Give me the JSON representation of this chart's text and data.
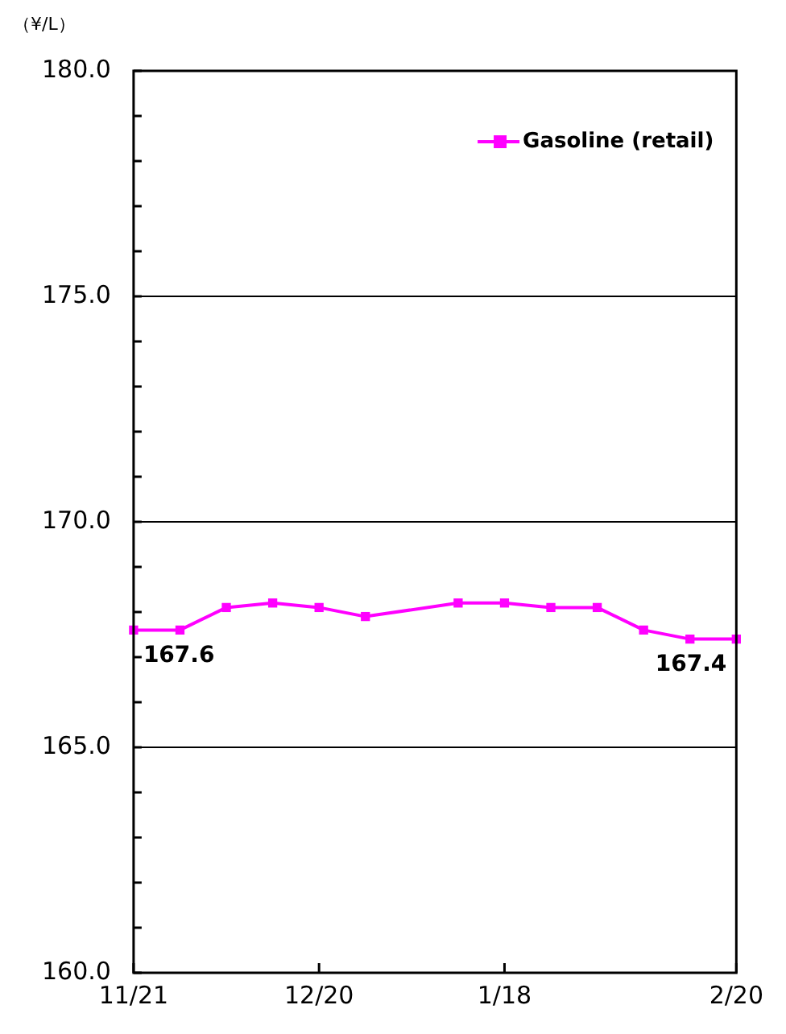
{
  "chart_data": {
    "type": "line",
    "ylabel": "（¥/L）",
    "categories": [
      "11/21",
      null,
      null,
      null,
      "12/20",
      null,
      null,
      null,
      "1/18",
      null,
      null,
      null,
      null,
      "2/20"
    ],
    "series": [
      {
        "name": "Gasoline (retail)",
        "color": "#ff00ff",
        "values": [
          167.6,
          167.6,
          168.1,
          168.2,
          168.1,
          167.9,
          null,
          168.2,
          168.2,
          168.1,
          168.1,
          167.6,
          167.4,
          167.4
        ],
        "value_labels": [
          "167.6",
          null,
          null,
          null,
          null,
          null,
          null,
          null,
          null,
          null,
          null,
          null,
          null,
          "167.4"
        ]
      }
    ],
    "ylim": [
      160,
      180
    ],
    "yticks": [
      {
        "value": 160,
        "label": "160.0"
      },
      {
        "value": 161,
        "label": null
      },
      {
        "value": 162,
        "label": null
      },
      {
        "value": 163,
        "label": null
      },
      {
        "value": 164,
        "label": null
      },
      {
        "value": 165,
        "label": "165.0"
      },
      {
        "value": 166,
        "label": null
      },
      {
        "value": 167,
        "label": null
      },
      {
        "value": 168,
        "label": null
      },
      {
        "value": 169,
        "label": null
      },
      {
        "value": 170,
        "label": "170.0"
      },
      {
        "value": 171,
        "label": null
      },
      {
        "value": 172,
        "label": null
      },
      {
        "value": 173,
        "label": null
      },
      {
        "value": 174,
        "label": null
      },
      {
        "value": 175,
        "label": "175.0"
      },
      {
        "value": 176,
        "label": null
      },
      {
        "value": 177,
        "label": null
      },
      {
        "value": 178,
        "label": null
      },
      {
        "value": 179,
        "label": null
      },
      {
        "value": 180,
        "label": "180.0"
      }
    ],
    "grid": "y",
    "legend": "top right",
    "marker": "square",
    "line_style": "solid"
  }
}
